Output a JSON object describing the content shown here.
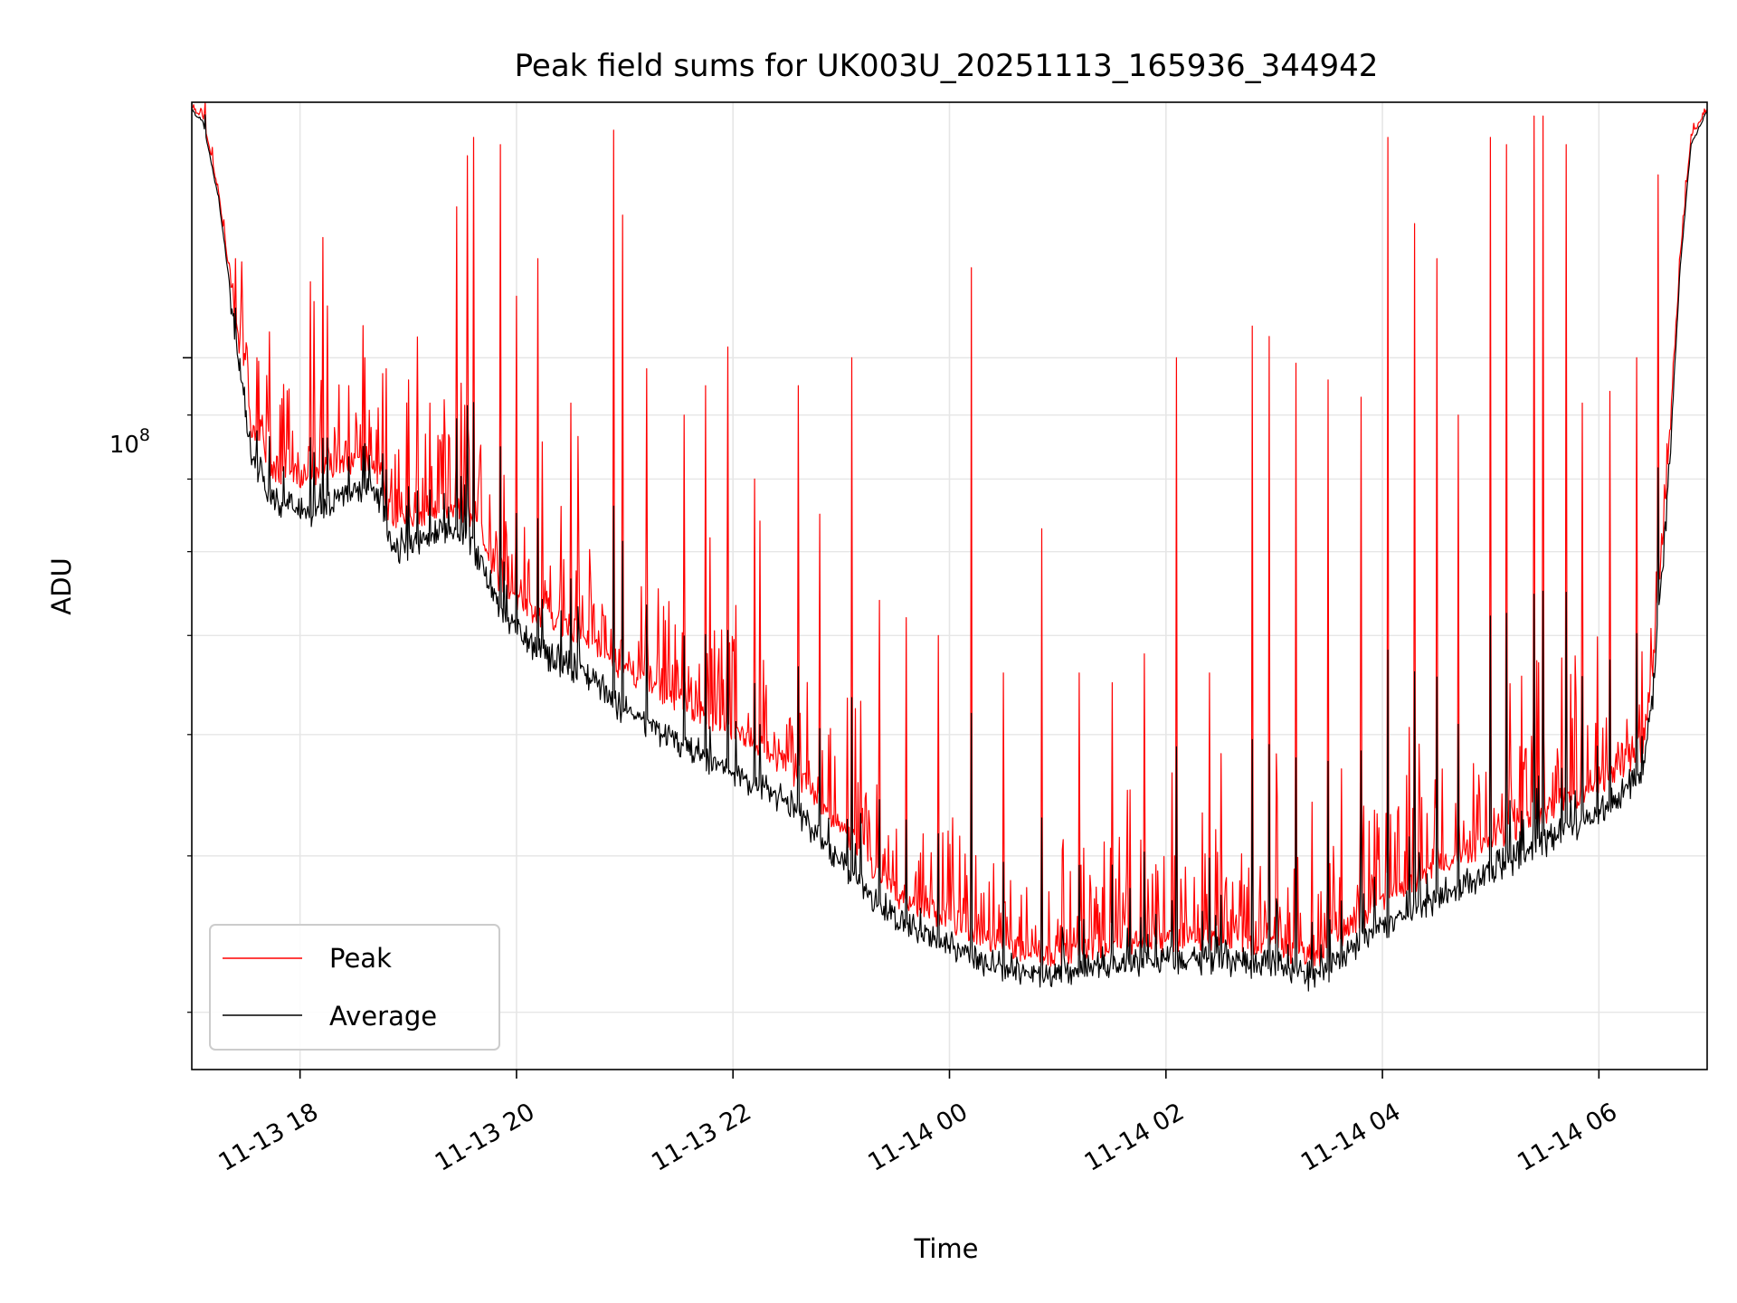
{
  "chart_data": {
    "type": "line",
    "title": "Peak field sums for UK003U_20251113_165936_344942",
    "xlabel": "Time",
    "ylabel": "ADU",
    "yscale": "log",
    "grid": true,
    "legend_position": "lower-left",
    "x_range_hours": [
      17.0,
      31.0
    ],
    "ylim": [
      27000000,
      160000000
    ],
    "x_ticks": [
      {
        "hour": 18,
        "label": "11-13 18"
      },
      {
        "hour": 20,
        "label": "11-13 20"
      },
      {
        "hour": 22,
        "label": "11-13 22"
      },
      {
        "hour": 24,
        "label": "11-14 00"
      },
      {
        "hour": 26,
        "label": "11-14 02"
      },
      {
        "hour": 28,
        "label": "11-14 04"
      },
      {
        "hour": 30,
        "label": "11-14 06"
      }
    ],
    "y_major_tick": {
      "value": 100000000,
      "base": "10",
      "exp": "8"
    },
    "y_minor_ticks": [
      30000000,
      40000000,
      50000000,
      60000000,
      70000000,
      80000000,
      90000000
    ],
    "series": [
      {
        "name": "Peak",
        "color": "#ff0000",
        "baseline": [
          [
            17.0,
            158000000
          ],
          [
            17.1,
            156000000
          ],
          [
            17.25,
            135000000
          ],
          [
            17.4,
            108000000
          ],
          [
            17.55,
            88000000
          ],
          [
            17.7,
            82000000
          ],
          [
            17.9,
            80000000
          ],
          [
            18.1,
            80000000
          ],
          [
            18.4,
            82000000
          ],
          [
            18.6,
            83000000
          ],
          [
            18.75,
            80000000
          ],
          [
            18.85,
            73000000
          ],
          [
            19.0,
            74000000
          ],
          [
            19.2,
            75000000
          ],
          [
            19.4,
            76000000
          ],
          [
            19.6,
            74000000
          ],
          [
            19.85,
            66000000
          ],
          [
            20.2,
            62000000
          ],
          [
            20.6,
            60000000
          ],
          [
            21.0,
            56000000
          ],
          [
            21.5,
            53000000
          ],
          [
            22.0,
            50000000
          ],
          [
            22.5,
            47000000
          ],
          [
            23.0,
            42000000
          ],
          [
            23.3,
            39000000
          ],
          [
            23.6,
            36500000
          ],
          [
            24.0,
            35500000
          ],
          [
            24.4,
            34000000
          ],
          [
            24.9,
            33200000
          ],
          [
            25.4,
            33800000
          ],
          [
            26.0,
            34200000
          ],
          [
            26.5,
            34200000
          ],
          [
            27.0,
            33800000
          ],
          [
            27.4,
            33000000
          ],
          [
            27.7,
            35000000
          ],
          [
            28.0,
            36500000
          ],
          [
            28.5,
            39000000
          ],
          [
            29.0,
            41000000
          ],
          [
            29.5,
            43000000
          ],
          [
            30.0,
            45500000
          ],
          [
            30.4,
            48500000
          ],
          [
            30.5,
            57000000
          ],
          [
            30.65,
            85000000
          ],
          [
            30.75,
            120000000
          ],
          [
            30.85,
            150000000
          ],
          [
            31.0,
            158000000
          ]
        ],
        "spikes": [
          [
            17.4,
            120000000
          ],
          [
            17.6,
            100000000
          ],
          [
            18.1,
            115000000
          ],
          [
            18.25,
            110000000
          ],
          [
            18.45,
            95000000
          ],
          [
            18.6,
            100000000
          ],
          [
            18.8,
            98000000
          ],
          [
            19.0,
            96000000
          ],
          [
            19.2,
            92000000
          ],
          [
            19.45,
            132000000
          ],
          [
            19.55,
            145000000
          ],
          [
            19.6,
            150000000
          ],
          [
            19.85,
            148000000
          ],
          [
            20.0,
            112000000
          ],
          [
            20.2,
            120000000
          ],
          [
            20.5,
            92000000
          ],
          [
            20.9,
            152000000
          ],
          [
            20.98,
            130000000
          ],
          [
            21.2,
            98000000
          ],
          [
            21.55,
            90000000
          ],
          [
            21.75,
            95000000
          ],
          [
            21.95,
            102000000
          ],
          [
            22.2,
            80000000
          ],
          [
            22.6,
            95000000
          ],
          [
            22.8,
            75000000
          ],
          [
            23.1,
            100000000
          ],
          [
            23.35,
            64000000
          ],
          [
            23.6,
            62000000
          ],
          [
            23.9,
            60000000
          ],
          [
            24.2,
            118000000
          ],
          [
            24.5,
            56000000
          ],
          [
            24.85,
            73000000
          ],
          [
            25.2,
            56000000
          ],
          [
            25.5,
            55000000
          ],
          [
            25.8,
            58000000
          ],
          [
            26.1,
            100000000
          ],
          [
            26.4,
            56000000
          ],
          [
            26.8,
            106000000
          ],
          [
            26.95,
            104000000
          ],
          [
            27.2,
            99000000
          ],
          [
            27.5,
            96000000
          ],
          [
            27.8,
            93000000
          ],
          [
            28.05,
            150000000
          ],
          [
            28.3,
            128000000
          ],
          [
            28.5,
            120000000
          ],
          [
            28.7,
            90000000
          ],
          [
            29.0,
            150000000
          ],
          [
            29.15,
            148000000
          ],
          [
            29.4,
            156000000
          ],
          [
            29.48,
            156000000
          ],
          [
            29.7,
            148000000
          ],
          [
            29.85,
            92000000
          ],
          [
            30.1,
            94000000
          ],
          [
            30.35,
            100000000
          ],
          [
            30.55,
            140000000
          ]
        ]
      },
      {
        "name": "Average",
        "color": "#000000",
        "baseline": [
          [
            17.0,
            158000000
          ],
          [
            17.1,
            155000000
          ],
          [
            17.25,
            134000000
          ],
          [
            17.4,
            106000000
          ],
          [
            17.55,
            85000000
          ],
          [
            17.7,
            79000000
          ],
          [
            17.9,
            77000000
          ],
          [
            18.1,
            76000000
          ],
          [
            18.4,
            79000000
          ],
          [
            18.6,
            80000000
          ],
          [
            18.75,
            78000000
          ],
          [
            18.85,
            71000000
          ],
          [
            19.0,
            72000000
          ],
          [
            19.2,
            73000000
          ],
          [
            19.4,
            74000000
          ],
          [
            19.6,
            72000000
          ],
          [
            19.85,
            64000000
          ],
          [
            20.2,
            59000000
          ],
          [
            20.6,
            57000000
          ],
          [
            21.0,
            53000000
          ],
          [
            21.5,
            50000000
          ],
          [
            22.0,
            47000000
          ],
          [
            22.5,
            45000000
          ],
          [
            23.0,
            40000000
          ],
          [
            23.3,
            37500000
          ],
          [
            23.6,
            35500000
          ],
          [
            24.0,
            34500000
          ],
          [
            24.4,
            33300000
          ],
          [
            24.9,
            32500000
          ],
          [
            25.4,
            33100000
          ],
          [
            26.0,
            33600000
          ],
          [
            26.5,
            33500000
          ],
          [
            27.0,
            33100000
          ],
          [
            27.4,
            32400000
          ],
          [
            27.7,
            34200000
          ],
          [
            28.0,
            35500000
          ],
          [
            28.5,
            37500000
          ],
          [
            29.0,
            39500000
          ],
          [
            29.5,
            41500000
          ],
          [
            30.0,
            44000000
          ],
          [
            30.4,
            47000000
          ],
          [
            30.5,
            55000000
          ],
          [
            30.65,
            82000000
          ],
          [
            30.75,
            118000000
          ],
          [
            30.85,
            148000000
          ],
          [
            31.0,
            158000000
          ]
        ]
      }
    ]
  }
}
